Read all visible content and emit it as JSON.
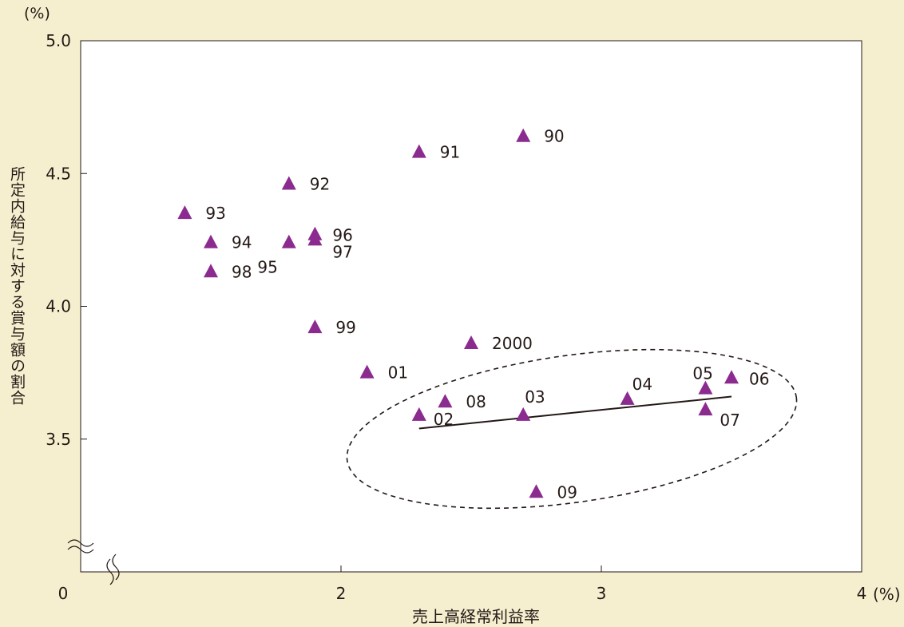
{
  "chart_data": {
    "type": "scatter",
    "title": "",
    "xlabel": "売上高経常利益率",
    "ylabel": "所定内給与に対する賞与額の割合",
    "x_unit": "(%)",
    "y_unit": "(%)",
    "xlim": [
      1,
      4
    ],
    "ylim": [
      3.0,
      5.0
    ],
    "axis_break": true,
    "origin_label": "0",
    "xticks": [
      "2",
      "3",
      "4"
    ],
    "yticks": [
      "3.5",
      "4.0",
      "4.5",
      "5.0"
    ],
    "grid": false,
    "marker": "triangle",
    "marker_color": "#8b2a8f",
    "points": [
      {
        "label": "90",
        "x": 2.7,
        "y": 4.64
      },
      {
        "label": "91",
        "x": 2.3,
        "y": 4.58
      },
      {
        "label": "92",
        "x": 1.8,
        "y": 4.46
      },
      {
        "label": "93",
        "x": 1.4,
        "y": 4.35
      },
      {
        "label": "94",
        "x": 1.5,
        "y": 4.24
      },
      {
        "label": "95",
        "x": 1.8,
        "y": 4.24
      },
      {
        "label": "96",
        "x": 1.9,
        "y": 4.27
      },
      {
        "label": "97",
        "x": 1.9,
        "y": 4.25
      },
      {
        "label": "98",
        "x": 1.5,
        "y": 4.13
      },
      {
        "label": "99",
        "x": 1.9,
        "y": 3.92
      },
      {
        "label": "2000",
        "x": 2.5,
        "y": 3.86
      },
      {
        "label": "01",
        "x": 2.1,
        "y": 3.75
      },
      {
        "label": "02",
        "x": 2.3,
        "y": 3.59
      },
      {
        "label": "03",
        "x": 2.7,
        "y": 3.59
      },
      {
        "label": "04",
        "x": 3.1,
        "y": 3.65
      },
      {
        "label": "05",
        "x": 3.4,
        "y": 3.69
      },
      {
        "label": "06",
        "x": 3.5,
        "y": 3.73
      },
      {
        "label": "07",
        "x": 3.4,
        "y": 3.61
      },
      {
        "label": "08",
        "x": 2.4,
        "y": 3.64
      },
      {
        "label": "09",
        "x": 2.75,
        "y": 3.3
      }
    ],
    "trendline": {
      "x": [
        2.3,
        3.5
      ],
      "y": [
        3.54,
        3.66
      ]
    }
  }
}
